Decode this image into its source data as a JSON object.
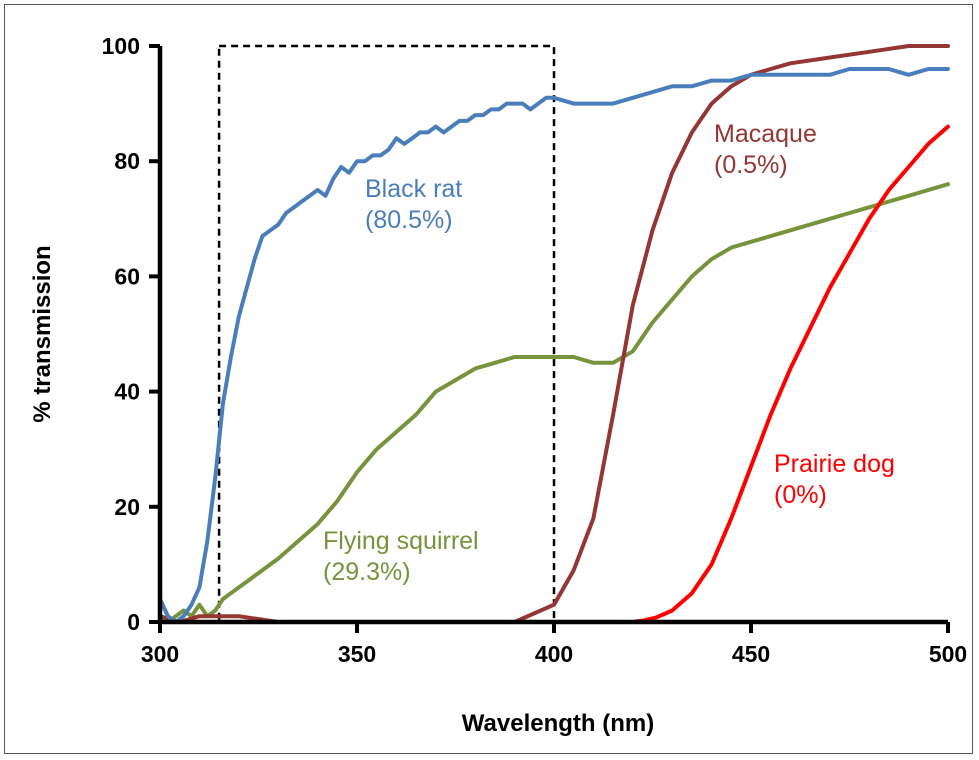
{
  "chart_data": {
    "type": "line",
    "title": "",
    "xlabel": "Wavelength (nm)",
    "ylabel": "% transmission",
    "xlim": [
      300,
      500
    ],
    "ylim": [
      0,
      100
    ],
    "x_ticks": [
      300,
      350,
      400,
      450,
      500
    ],
    "y_ticks": [
      0,
      20,
      40,
      60,
      80,
      100
    ],
    "x_tick_labels": [
      "300",
      "350",
      "400",
      "450",
      "500"
    ],
    "y_tick_labels": [
      "0",
      "20",
      "40",
      "60",
      "80",
      "100"
    ],
    "grid": false,
    "legend": "none",
    "highlight_box": {
      "x": [
        315,
        400
      ],
      "y": [
        0,
        100
      ],
      "style": "dashed"
    },
    "series": [
      {
        "name": "Black rat",
        "label_lines": [
          "Black rat",
          "(80.5%)"
        ],
        "color": "#4a7ebb",
        "x": [
          300,
          302,
          304,
          306,
          308,
          310,
          312,
          314,
          316,
          318,
          320,
          322,
          324,
          326,
          328,
          330,
          332,
          334,
          336,
          338,
          340,
          342,
          344,
          346,
          348,
          350,
          352,
          354,
          356,
          358,
          360,
          362,
          364,
          366,
          368,
          370,
          372,
          374,
          376,
          378,
          380,
          382,
          384,
          386,
          388,
          390,
          392,
          394,
          396,
          398,
          400,
          405,
          410,
          415,
          420,
          425,
          430,
          435,
          440,
          445,
          450,
          455,
          460,
          465,
          470,
          475,
          480,
          485,
          490,
          495,
          500
        ],
        "y": [
          4,
          1,
          0,
          1,
          3,
          6,
          14,
          25,
          38,
          46,
          53,
          58,
          63,
          67,
          68,
          69,
          71,
          72,
          73,
          74,
          75,
          74,
          77,
          79,
          78,
          80,
          80,
          81,
          81,
          82,
          84,
          83,
          84,
          85,
          85,
          86,
          85,
          86,
          87,
          87,
          88,
          88,
          89,
          89,
          90,
          90,
          90,
          89,
          90,
          91,
          91,
          90,
          90,
          90,
          91,
          92,
          93,
          93,
          94,
          94,
          95,
          95,
          95,
          95,
          95,
          96,
          96,
          96,
          95,
          96,
          96
        ]
      },
      {
        "name": "Flying squirrel",
        "label_lines": [
          "Flying squirrel",
          "(29.3%)"
        ],
        "color": "#77933c",
        "x": [
          300,
          302,
          304,
          306,
          308,
          310,
          312,
          314,
          316,
          318,
          320,
          322,
          324,
          326,
          328,
          330,
          335,
          340,
          345,
          350,
          355,
          360,
          365,
          370,
          375,
          380,
          385,
          390,
          395,
          400,
          405,
          410,
          415,
          420,
          425,
          430,
          435,
          440,
          445,
          450,
          455,
          460,
          465,
          470,
          475,
          480,
          485,
          490,
          495,
          500
        ],
        "y": [
          1,
          0,
          1,
          2,
          1,
          3,
          1,
          2,
          4,
          5,
          6,
          7,
          8,
          9,
          10,
          11,
          14,
          17,
          21,
          26,
          30,
          33,
          36,
          40,
          42,
          44,
          45,
          46,
          46,
          46,
          46,
          45,
          45,
          47,
          52,
          56,
          60,
          63,
          65,
          66,
          67,
          68,
          69,
          70,
          71,
          72,
          73,
          74,
          75,
          76
        ]
      },
      {
        "name": "Macaque",
        "label_lines": [
          "Macaque",
          "(0.5%)"
        ],
        "color": "#943634",
        "x": [
          300,
          305,
          310,
          315,
          320,
          330,
          340,
          350,
          360,
          370,
          380,
          390,
          400,
          405,
          410,
          415,
          420,
          425,
          430,
          435,
          440,
          445,
          450,
          455,
          460,
          470,
          480,
          490,
          500
        ],
        "y": [
          1,
          0,
          1,
          1,
          1,
          0,
          0,
          0,
          0,
          0,
          0,
          0,
          3,
          9,
          18,
          36,
          55,
          68,
          78,
          85,
          90,
          93,
          95,
          96,
          97,
          98,
          99,
          100,
          100
        ]
      },
      {
        "name": "Prairie dog",
        "label_lines": [
          "Prairie dog",
          "(0%)"
        ],
        "color": "#ff0000",
        "x": [
          300,
          320,
          340,
          360,
          380,
          400,
          410,
          415,
          420,
          423,
          426,
          430,
          435,
          440,
          445,
          450,
          455,
          460,
          465,
          470,
          475,
          480,
          485,
          490,
          495,
          500
        ],
        "y": [
          0,
          0,
          0,
          0,
          0,
          0,
          0,
          0,
          0,
          0.3,
          0.8,
          2,
          5,
          10,
          18,
          27,
          36,
          44,
          51,
          58,
          64,
          70,
          75,
          79,
          83,
          86
        ]
      }
    ]
  }
}
